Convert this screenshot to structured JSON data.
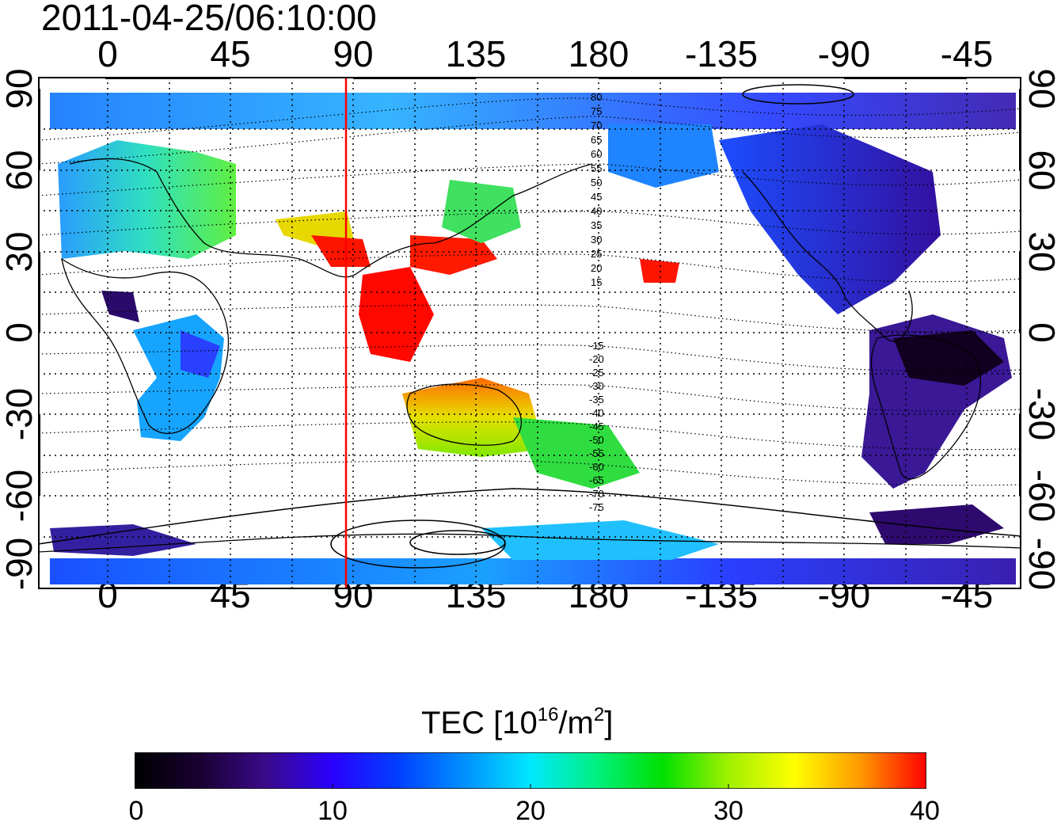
{
  "header": {
    "timestamp": "2011-04-25/06:10:00"
  },
  "map": {
    "x_axis": {
      "tick_labels": [
        "0",
        "45",
        "90",
        "135",
        "180",
        "-135",
        "-90",
        "-45"
      ]
    },
    "y_axis": {
      "tick_labels": [
        "90",
        "60",
        "30",
        "0",
        "-30",
        "-60",
        "-90"
      ]
    },
    "grid": "dotted",
    "terminator_longitude": 87,
    "terminator_color": "#ff0000",
    "contour_labels": [
      "80",
      "75",
      "70",
      "65",
      "60",
      "55",
      "50",
      "45",
      "40",
      "35",
      "30",
      "25",
      "20",
      "15",
      "-15",
      "-20",
      "-25",
      "-30",
      "-35",
      "-40",
      "-45",
      "-50",
      "-55",
      "-60",
      "-65",
      "-70",
      "-75"
    ]
  },
  "colorbar": {
    "title": "TEC  [10",
    "title_exponent": "16",
    "title_unit": "/m",
    "title_unit_exponent": "2",
    "title_end": "]",
    "tick_labels": [
      "0",
      "10",
      "20",
      "30",
      "40"
    ],
    "range": [
      0,
      40
    ],
    "colors": [
      "#000000",
      "#1a0033",
      "#3a0a8a",
      "#2a00ff",
      "#0040ff",
      "#0090ff",
      "#00e8ff",
      "#00f080",
      "#00e000",
      "#a0f000",
      "#ffff00",
      "#ff9900",
      "#ff0000"
    ]
  }
}
